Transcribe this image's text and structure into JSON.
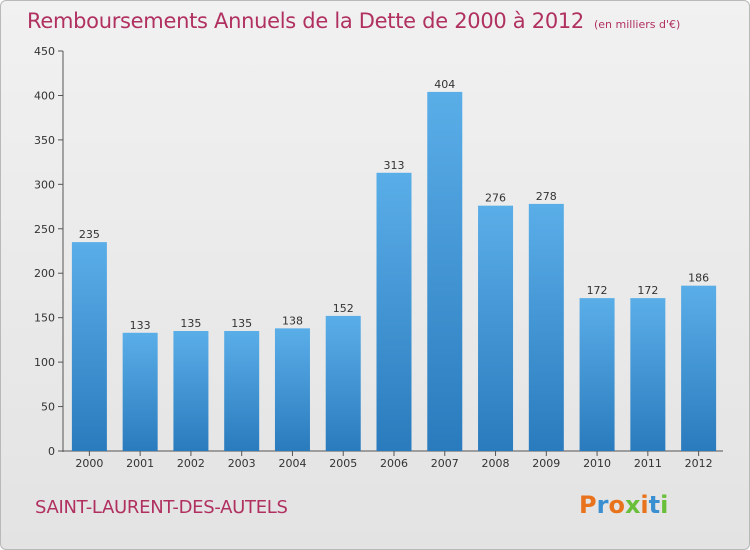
{
  "header": {
    "title": "Remboursements Annuels de la Dette de 2000 à 2012",
    "unit": "(en milliers d'€)"
  },
  "footer": {
    "commune": "SAINT-LAURENT-DES-AUTELS",
    "logo": "Proxiti"
  },
  "colors": {
    "bar_top": "#5aaee8",
    "bar_bottom": "#2a7bbd",
    "title": "#b03060",
    "logo_letters": [
      "#e8731c",
      "#3a8fd0",
      "#e8731c",
      "#6abf3a",
      "#e8731c",
      "#3a8fd0",
      "#6abf3a"
    ]
  },
  "chart_data": {
    "type": "bar",
    "title": "Remboursements Annuels de la Dette de 2000 à 2012",
    "xlabel": "",
    "ylabel": "",
    "categories": [
      "2000",
      "2001",
      "2002",
      "2003",
      "2004",
      "2005",
      "2006",
      "2007",
      "2008",
      "2009",
      "2010",
      "2011",
      "2012"
    ],
    "values": [
      235,
      133,
      135,
      135,
      138,
      152,
      313,
      404,
      276,
      278,
      172,
      172,
      186
    ],
    "ylim": [
      0,
      450
    ],
    "yticks": [
      0,
      50,
      100,
      150,
      200,
      250,
      300,
      350,
      400,
      450
    ],
    "grid": false,
    "legend": "none"
  }
}
